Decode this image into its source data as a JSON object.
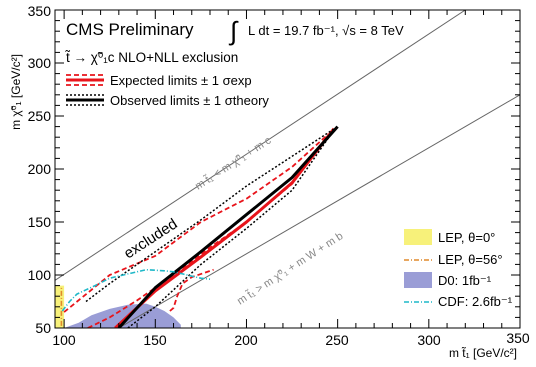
{
  "chart_data": {
    "type": "line",
    "title": "CMS Preliminary",
    "lumi_text": "L dt = 19.7 fb⁻¹, √s = 8 TeV",
    "subtitle": "t̃ → χ̃⁰₁c NLO+NLL exclusion",
    "xlabel": "m t̃₁ [GeV/c²]",
    "ylabel": "m χ̃⁰₁ [GeV/c²]",
    "xlim": [
      95,
      350
    ],
    "ylim": [
      50,
      350
    ],
    "x_ticks": [
      "100",
      "150",
      "200",
      "250",
      "300",
      "350"
    ],
    "y_ticks": [
      "50",
      "100",
      "150",
      "200",
      "250",
      "300",
      "350"
    ],
    "grid": false,
    "legend": {
      "top_left": [
        {
          "label": "Expected limits ± 1 σexp",
          "color": "#e8141b",
          "style": "red-solid-with-dashed-band"
        },
        {
          "label": "Observed limits ± 1 σtheory",
          "color": "#000000",
          "style": "black-solid-with-dotted-band"
        }
      ],
      "bottom_right": [
        {
          "label": "LEP, θ=0°",
          "color": "#f7f17a",
          "style": "filled-box"
        },
        {
          "label": "LEP, θ=56°",
          "color": "#e08a2b",
          "style": "dash-dot"
        },
        {
          "label": "D0: 1fb⁻¹",
          "color": "#9a9dd6",
          "style": "filled-box"
        },
        {
          "label": "CDF: 2.6fb⁻¹",
          "color": "#1fb8c8",
          "style": "dash-dot"
        }
      ]
    },
    "annotations": {
      "excluded": "excluded",
      "diag_upper": "m t̃₁ < m χ̃⁰₁ + m c",
      "diag_lower": "m t̃₁ > m χ̃⁰₁ + m W + m b"
    },
    "series": [
      {
        "name": "Expected limits",
        "color": "#e8141b",
        "dash": "",
        "width": 3,
        "x": [
          128,
          150,
          175,
          200,
          225,
          248
        ],
        "y": [
          50,
          85,
          117,
          150,
          187,
          238
        ]
      },
      {
        "name": "Expected +1σ",
        "color": "#e8141b",
        "dash": "5,3",
        "width": 1.8,
        "x": [
          100,
          125,
          150,
          175,
          200,
          225,
          245
        ],
        "y": [
          65,
          100,
          118,
          150,
          172,
          202,
          233
        ]
      },
      {
        "name": "Expected −1σ",
        "color": "#e8141b",
        "dash": "5,3",
        "width": 1.8,
        "x": [
          113,
          125,
          140,
          160,
          180,
          200,
          225,
          245
        ],
        "y": [
          50,
          60,
          76,
          100,
          126,
          150,
          186,
          232
        ]
      },
      {
        "name": "Expected −1σ (lower branch)",
        "color": "#e8141b",
        "dash": "5,3",
        "width": 1.8,
        "x": [
          158,
          160,
          162,
          165,
          170,
          182
        ],
        "y": [
          66,
          69,
          80,
          92,
          98,
          105
        ]
      },
      {
        "name": "Observed limits",
        "color": "#000000",
        "dash": "",
        "width": 3,
        "x": [
          130,
          150,
          175,
          200,
          225,
          250
        ],
        "y": [
          50,
          88,
          122,
          157,
          192,
          240
        ]
      },
      {
        "name": "Observed +1σ",
        "color": "#000000",
        "dash": "2,2",
        "width": 1.5,
        "x": [
          112,
          125,
          150,
          175,
          200,
          225,
          250
        ],
        "y": [
          75,
          92,
          122,
          152,
          184,
          212,
          240
        ]
      },
      {
        "name": "Observed −1σ",
        "color": "#000000",
        "dash": "2,2",
        "width": 1.5,
        "x": [
          135,
          150,
          175,
          200,
          225,
          248
        ],
        "y": [
          50,
          70,
          110,
          144,
          180,
          237
        ]
      },
      {
        "name": "CDF: 2.6fb⁻¹",
        "color": "#1fb8c8",
        "dash": "5,2,1,2",
        "width": 1.6,
        "x": [
          99,
          103,
          107,
          112,
          117,
          125,
          135,
          145,
          155,
          160,
          165,
          170,
          175,
          180
        ],
        "y": [
          66,
          75,
          82,
          86,
          90,
          97,
          101,
          105,
          104,
          103,
          101,
          99,
          97,
          96
        ]
      },
      {
        "name": "LEP, θ=56°",
        "color": "#e08a2b",
        "dash": "5,2,1,2",
        "width": 1.6,
        "x": [
          98.5,
          98.5
        ],
        "y": [
          52,
          88
        ]
      }
    ],
    "areas": [
      {
        "name": "D0: 1fb⁻¹",
        "color": "#9a9dd6",
        "x": [
          100,
          108,
          115,
          125,
          135,
          145,
          150,
          155,
          160,
          164,
          164,
          100
        ],
        "y": [
          50,
          55,
          62,
          68,
          72,
          73,
          70,
          66,
          60,
          53,
          50,
          50
        ]
      },
      {
        "name": "LEP, θ=0°",
        "color": "#f7f17a",
        "x": [
          95,
          100,
          100,
          95
        ],
        "y": [
          50,
          50,
          90,
          90
        ]
      }
    ],
    "diagonals": [
      {
        "name": "kinematic limit upper",
        "x": [
          95,
          320
        ],
        "y": [
          95,
          350
        ]
      },
      {
        "name": "kinematic limit lower",
        "x": [
          130,
          350
        ],
        "y": [
          50,
          270
        ]
      }
    ]
  }
}
